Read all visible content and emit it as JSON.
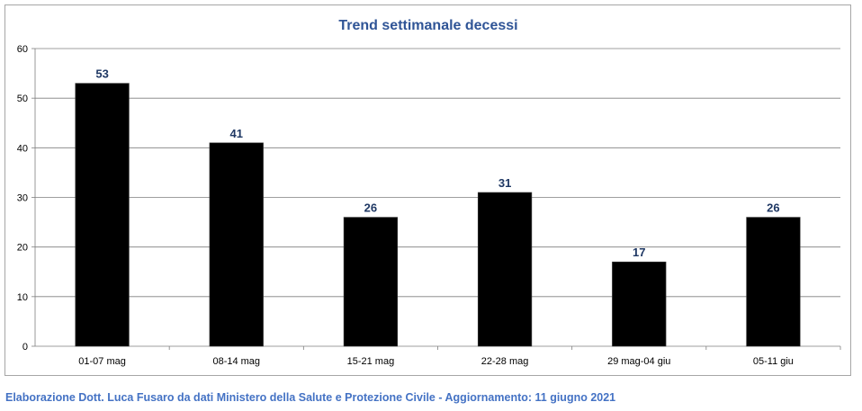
{
  "chart_data": {
    "type": "bar",
    "title": "Trend settimanale decessi",
    "xlabel": "",
    "ylabel": "",
    "categories": [
      "01-07 mag",
      "08-14 mag",
      "15-21 mag",
      "22-28 mag",
      "29 mag-04 giu",
      "05-11 giu"
    ],
    "values": [
      53,
      41,
      26,
      31,
      17,
      26
    ],
    "ylim": [
      0,
      60
    ],
    "yticks": [
      0,
      10,
      20,
      30,
      40,
      50,
      60
    ],
    "grid": true,
    "legend": "none",
    "data_labels": true,
    "colors": {
      "bar": "#000000",
      "title": "#2f5496",
      "data_label": "#1f3864",
      "grid": "#7f7f7f"
    }
  },
  "footer": {
    "credit": "Elaborazione Dott. Luca Fusaro da dati Ministero della Salute e Protezione Civile - Aggiornamento: 11 giugno 2021"
  }
}
